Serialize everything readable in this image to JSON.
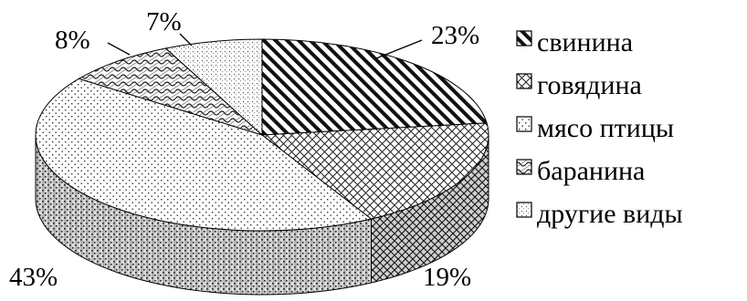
{
  "chart_data": {
    "type": "pie",
    "style": "3d",
    "categories": [
      "свинина",
      "говядина",
      "мясо птицы",
      "баранина",
      "другие виды"
    ],
    "values": [
      23,
      19,
      43,
      8,
      7
    ],
    "value_labels": [
      "23%",
      "19%",
      "43%",
      "8%",
      "7%"
    ],
    "title": "",
    "legend_position": "right",
    "colors": [
      "#000000",
      "#000000",
      "#000000",
      "#000000",
      "#000000"
    ]
  }
}
